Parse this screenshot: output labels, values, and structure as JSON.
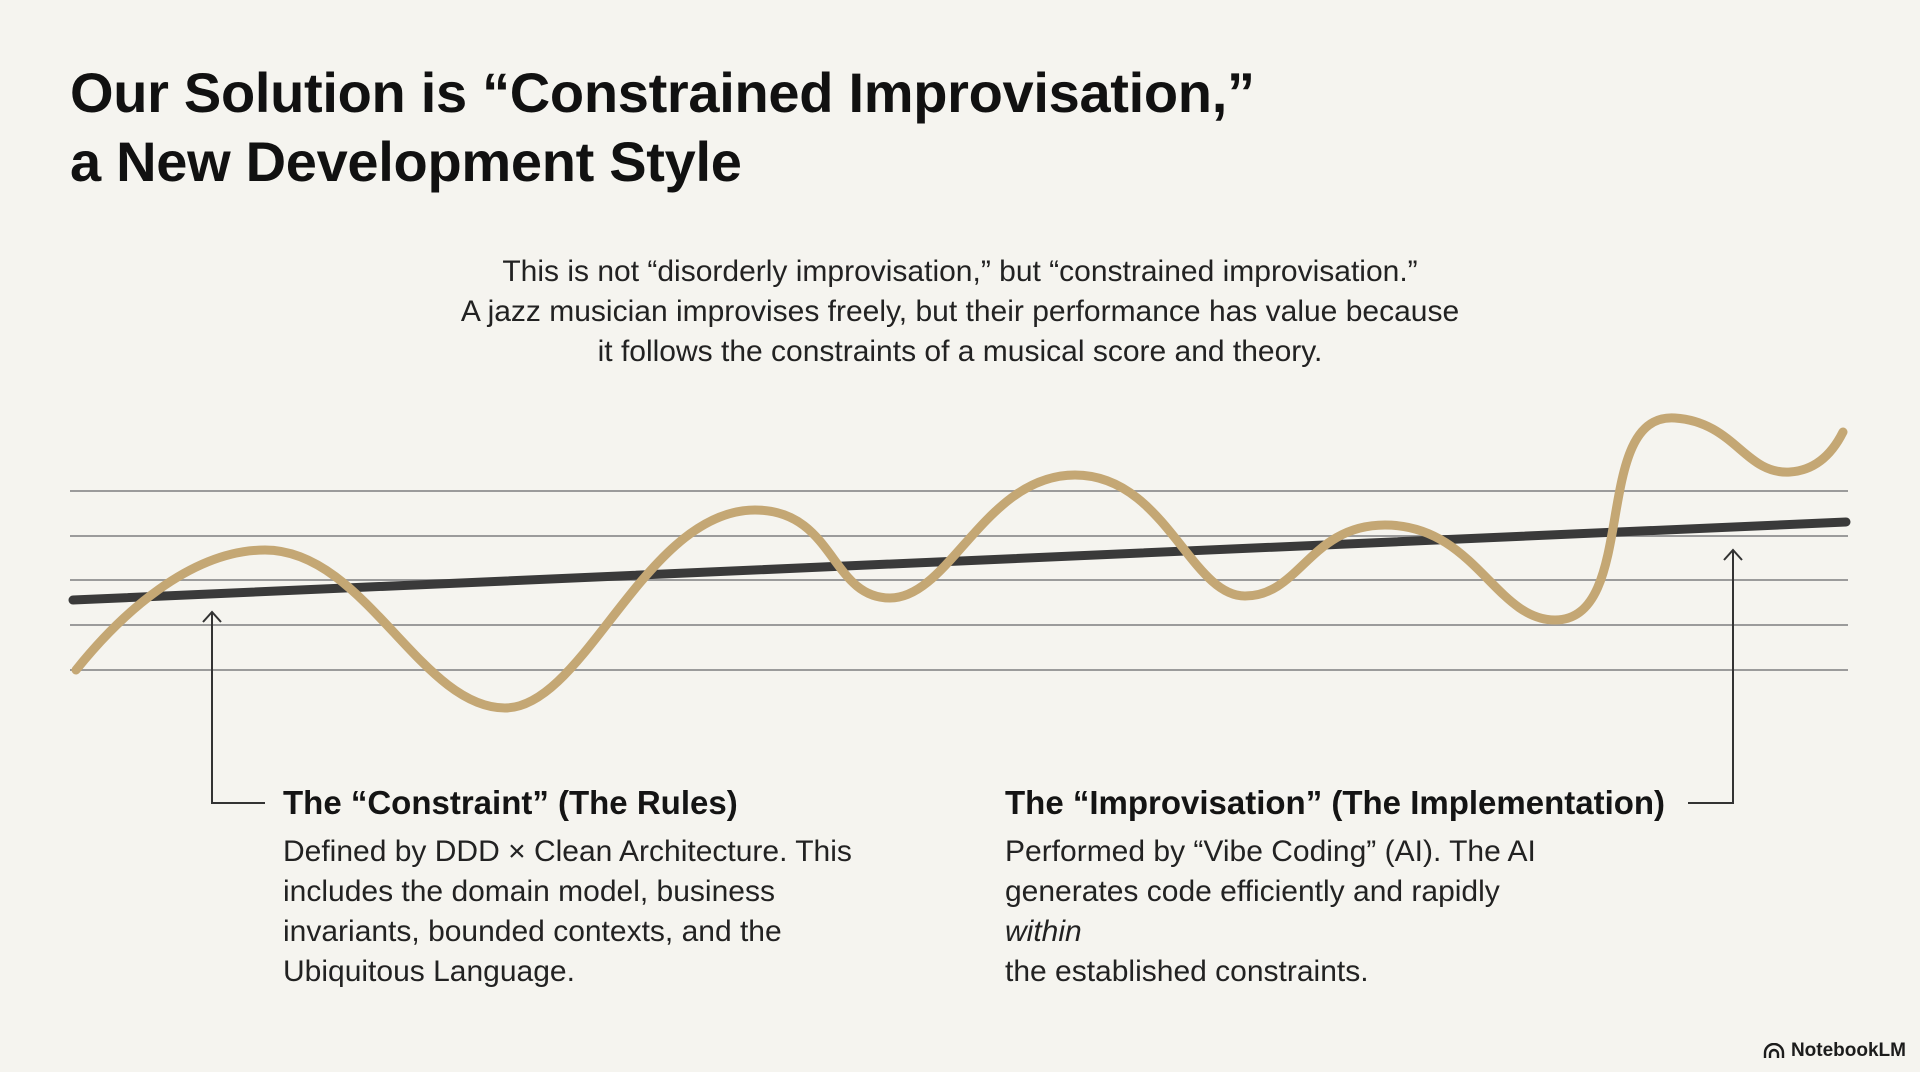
{
  "slide": {
    "title_line1": "Our Solution is “Constrained Improvisation,”",
    "title_line2": "a New Development Style",
    "intro": {
      "line1": "This is not “disorderly improvisation,” but “constrained improvisation.”",
      "line2": "A jazz musician improvises freely, but their performance has value because",
      "line3": "it follows the constraints of a musical score and theory."
    }
  },
  "diagram": {
    "staff_lines": 5,
    "constraint_line_color": "#3a3a3a",
    "improvisation_wave_color": "#c4a774",
    "staff_line_color": "#9b9b9b"
  },
  "constraint": {
    "heading": "The “Constraint” (The Rules)",
    "body": {
      "line1": "Defined by DDD × Clean Architecture. This",
      "line2": "includes the domain model, business",
      "line3": "invariants, bounded contexts, and the",
      "line4": "Ubiquitous Language."
    }
  },
  "improvisation": {
    "heading": "The “Improvisation” (The Implementation)",
    "body": {
      "line1": "Performed by “Vibe Coding” (AI). The AI",
      "line2_pre": "generates code efficiently and rapidly ",
      "line2_em": "within",
      "line3": "the established constraints."
    }
  },
  "branding": {
    "label": "NotebookLM",
    "icon": "notebooklm-logo-icon"
  }
}
